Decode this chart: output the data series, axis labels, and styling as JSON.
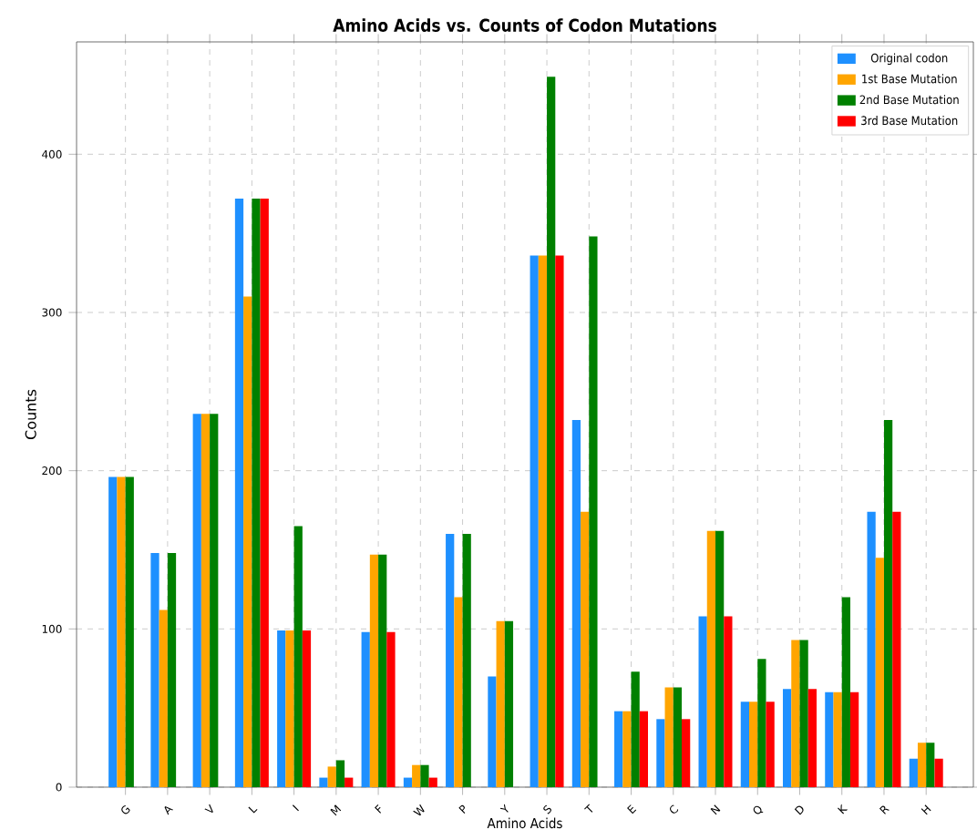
{
  "chart_data": {
    "type": "bar",
    "title": "Amino Acids vs. Counts of Codon Mutations",
    "xlabel": "Amino Acids",
    "ylabel": "Counts",
    "categories": [
      "G",
      "A",
      "V",
      "L",
      "I",
      "M",
      "F",
      "W",
      "P",
      "Y",
      "S",
      "T",
      "E",
      "C",
      "N",
      "Q",
      "D",
      "K",
      "R",
      "H"
    ],
    "series": [
      {
        "name": "Original codon",
        "color": "#1e90ff",
        "values": [
          196,
          148,
          236,
          372,
          99,
          6,
          98,
          6,
          160,
          70,
          336,
          232,
          48,
          43,
          108,
          54,
          62,
          60,
          174,
          18
        ]
      },
      {
        "name": "1st Base Mutation",
        "color": "#ffa500",
        "values": [
          196,
          112,
          236,
          310,
          99,
          13,
          147,
          14,
          120,
          105,
          336,
          174,
          48,
          63,
          162,
          54,
          93,
          60,
          145,
          28
        ]
      },
      {
        "name": "2nd Base Mutation",
        "color": "#008000",
        "values": [
          196,
          148,
          236,
          372,
          165,
          17,
          147,
          14,
          160,
          105,
          449,
          348,
          73,
          63,
          162,
          81,
          93,
          120,
          232,
          28
        ]
      },
      {
        "name": "3rd Base Mutation",
        "color": "#ff0000",
        "values": [
          0,
          0,
          0,
          372,
          99,
          6,
          98,
          6,
          0,
          0,
          336,
          0,
          48,
          43,
          108,
          54,
          62,
          60,
          174,
          18
        ]
      }
    ],
    "ylim": [
      0,
      471
    ],
    "yticks": [
      0,
      100,
      200,
      300,
      400
    ],
    "grid": true,
    "legend": "top right"
  }
}
